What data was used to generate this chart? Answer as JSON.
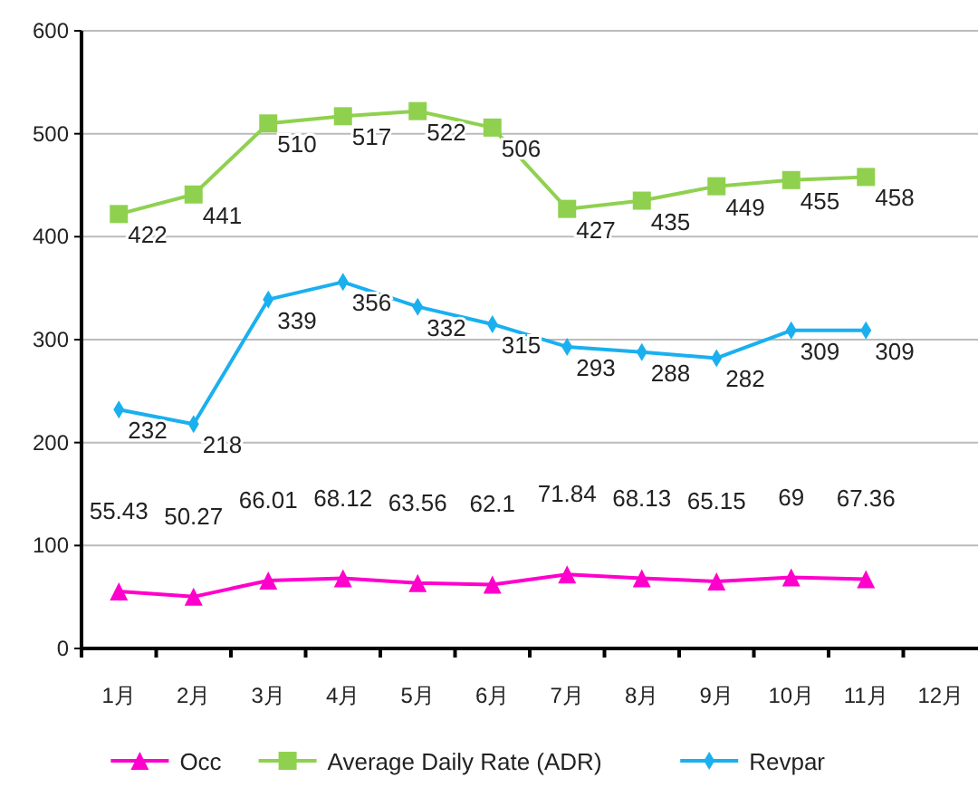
{
  "chart_data": {
    "type": "line",
    "categories": [
      "1月",
      "2月",
      "3月",
      "4月",
      "5月",
      "6月",
      "7月",
      "8月",
      "9月",
      "10月",
      "11月",
      "12月"
    ],
    "series": [
      {
        "name": "Occ",
        "color": "#ff00cc",
        "marker": "triangle",
        "values": [
          55.43,
          50.27,
          66.01,
          68.12,
          63.56,
          62.1,
          71.84,
          68.13,
          65.15,
          69,
          67.36,
          null
        ]
      },
      {
        "name": "Average Daily Rate (ADR)",
        "color": "#8fd14f",
        "marker": "square",
        "values": [
          422,
          441,
          510,
          517,
          522,
          506,
          427,
          435,
          449,
          455,
          458,
          null
        ]
      },
      {
        "name": "Revpar",
        "color": "#1ab0ef",
        "marker": "diamond",
        "values": [
          232,
          218,
          339,
          356,
          332,
          315,
          293,
          288,
          282,
          309,
          309,
          null
        ]
      }
    ],
    "ylim": [
      0,
      600
    ],
    "yticks": [
      0,
      100,
      200,
      300,
      400,
      500,
      600
    ],
    "grid": "y",
    "legend": "bottom",
    "data_labels": true
  }
}
